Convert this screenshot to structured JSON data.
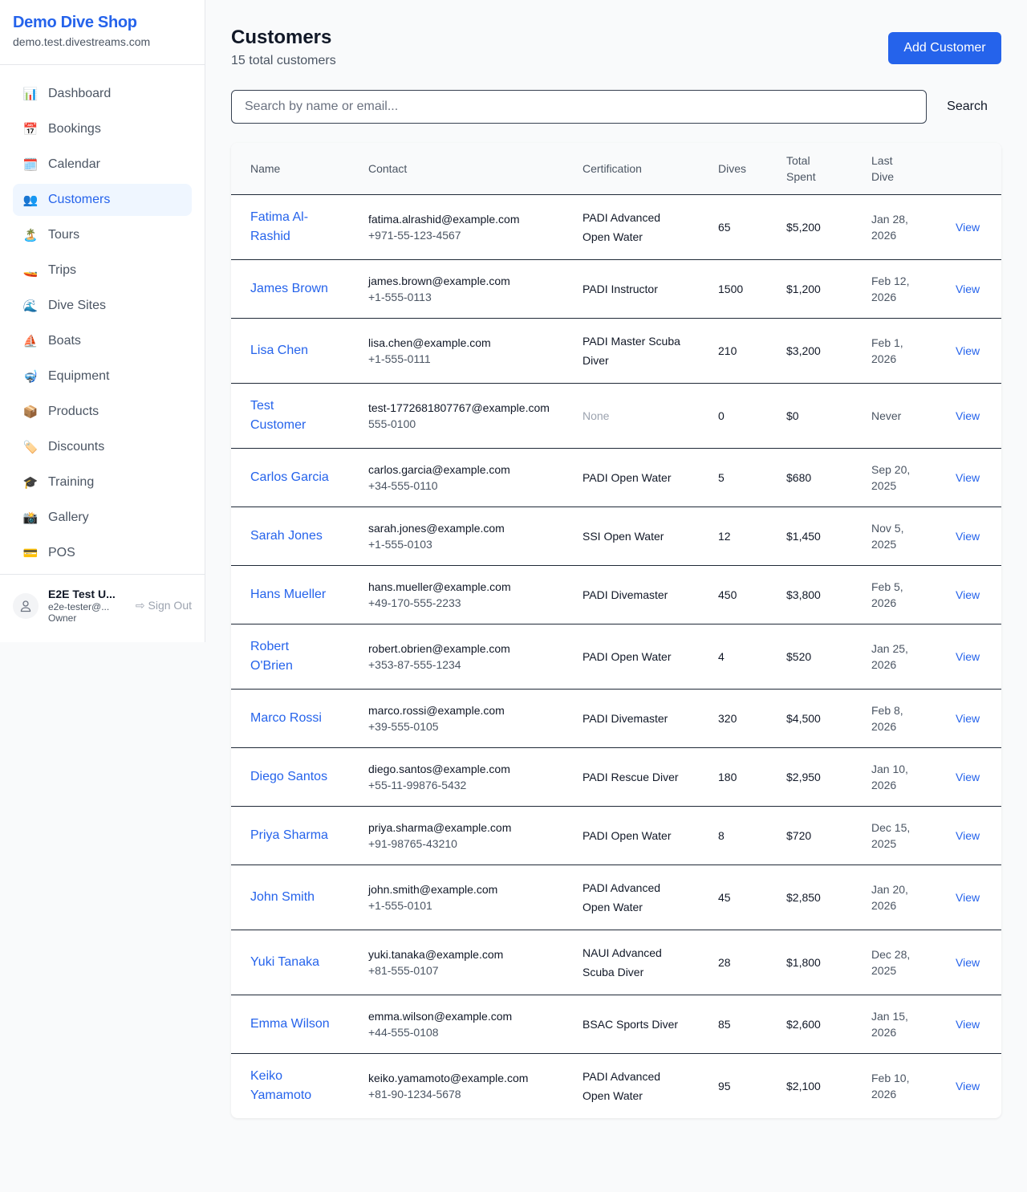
{
  "sidebar": {
    "brand": "Demo Dive Shop",
    "domain": "demo.test.divestreams.com",
    "items": [
      {
        "label": "Dashboard",
        "icon": "📊",
        "icon_name": "bar-chart-icon"
      },
      {
        "label": "Bookings",
        "icon": "📅",
        "icon_name": "calendar-date-icon"
      },
      {
        "label": "Calendar",
        "icon": "🗓️",
        "icon_name": "calendar-icon"
      },
      {
        "label": "Customers",
        "icon": "👥",
        "icon_name": "users-icon",
        "active": true
      },
      {
        "label": "Tours",
        "icon": "🏝️",
        "icon_name": "island-icon"
      },
      {
        "label": "Trips",
        "icon": "🚤",
        "icon_name": "boat-icon"
      },
      {
        "label": "Dive Sites",
        "icon": "🌊",
        "icon_name": "wave-icon"
      },
      {
        "label": "Boats",
        "icon": "⛵",
        "icon_name": "sailboat-icon"
      },
      {
        "label": "Equipment",
        "icon": "🤿",
        "icon_name": "diving-mask-icon"
      },
      {
        "label": "Products",
        "icon": "📦",
        "icon_name": "package-icon"
      },
      {
        "label": "Discounts",
        "icon": "🏷️",
        "icon_name": "tag-icon"
      },
      {
        "label": "Training",
        "icon": "🎓",
        "icon_name": "graduation-cap-icon"
      },
      {
        "label": "Gallery",
        "icon": "📸",
        "icon_name": "camera-icon"
      },
      {
        "label": "POS",
        "icon": "💳",
        "icon_name": "credit-card-icon"
      }
    ],
    "user": {
      "name": "E2E Test U...",
      "email": "e2e-tester@...",
      "role": "Owner",
      "sign_out": "Sign Out"
    }
  },
  "header": {
    "title": "Customers",
    "subtitle": "15 total customers",
    "add_button": "Add Customer"
  },
  "search": {
    "placeholder": "Search by name or email...",
    "value": "",
    "button": "Search"
  },
  "table": {
    "columns": [
      "Name",
      "Contact",
      "Certification",
      "Dives",
      "Total Spent",
      "Last Dive",
      ""
    ],
    "view_label": "View",
    "rows": [
      {
        "name": "Fatima Al-Rashid",
        "email": "fatima.alrashid@example.com",
        "phone": "+971-55-123-4567",
        "cert": "PADI Advanced Open Water",
        "dives": "65",
        "spent": "$5,200",
        "last": "Jan 28, 2026"
      },
      {
        "name": "James Brown",
        "email": "james.brown@example.com",
        "phone": "+1-555-0113",
        "cert": "PADI Instructor",
        "dives": "1500",
        "spent": "$1,200",
        "last": "Feb 12, 2026"
      },
      {
        "name": "Lisa Chen",
        "email": "lisa.chen@example.com",
        "phone": "+1-555-0111",
        "cert": "PADI Master Scuba Diver",
        "dives": "210",
        "spent": "$3,200",
        "last": "Feb 1, 2026"
      },
      {
        "name": "Test Customer",
        "email": "test-1772681807767@example.com",
        "phone": "555-0100",
        "cert": "None",
        "dives": "0",
        "spent": "$0",
        "last": "Never"
      },
      {
        "name": "Carlos Garcia",
        "email": "carlos.garcia@example.com",
        "phone": "+34-555-0110",
        "cert": "PADI Open Water",
        "dives": "5",
        "spent": "$680",
        "last": "Sep 20, 2025"
      },
      {
        "name": "Sarah Jones",
        "email": "sarah.jones@example.com",
        "phone": "+1-555-0103",
        "cert": "SSI Open Water",
        "dives": "12",
        "spent": "$1,450",
        "last": "Nov 5, 2025"
      },
      {
        "name": "Hans Mueller",
        "email": "hans.mueller@example.com",
        "phone": "+49-170-555-2233",
        "cert": "PADI Divemaster",
        "dives": "450",
        "spent": "$3,800",
        "last": "Feb 5, 2026"
      },
      {
        "name": "Robert O'Brien",
        "email": "robert.obrien@example.com",
        "phone": "+353-87-555-1234",
        "cert": "PADI Open Water",
        "dives": "4",
        "spent": "$520",
        "last": "Jan 25, 2026"
      },
      {
        "name": "Marco Rossi",
        "email": "marco.rossi@example.com",
        "phone": "+39-555-0105",
        "cert": "PADI Divemaster",
        "dives": "320",
        "spent": "$4,500",
        "last": "Feb 8, 2026"
      },
      {
        "name": "Diego Santos",
        "email": "diego.santos@example.com",
        "phone": "+55-11-99876-5432",
        "cert": "PADI Rescue Diver",
        "dives": "180",
        "spent": "$2,950",
        "last": "Jan 10, 2026"
      },
      {
        "name": "Priya Sharma",
        "email": "priya.sharma@example.com",
        "phone": "+91-98765-43210",
        "cert": "PADI Open Water",
        "dives": "8",
        "spent": "$720",
        "last": "Dec 15, 2025"
      },
      {
        "name": "John Smith",
        "email": "john.smith@example.com",
        "phone": "+1-555-0101",
        "cert": "PADI Advanced Open Water",
        "dives": "45",
        "spent": "$2,850",
        "last": "Jan 20, 2026"
      },
      {
        "name": "Yuki Tanaka",
        "email": "yuki.tanaka@example.com",
        "phone": "+81-555-0107",
        "cert": "NAUI Advanced Scuba Diver",
        "dives": "28",
        "spent": "$1,800",
        "last": "Dec 28, 2025"
      },
      {
        "name": "Emma Wilson",
        "email": "emma.wilson@example.com",
        "phone": "+44-555-0108",
        "cert": "BSAC Sports Diver",
        "dives": "85",
        "spent": "$2,600",
        "last": "Jan 15, 2026"
      },
      {
        "name": "Keiko Yamamoto",
        "email": "keiko.yamamoto@example.com",
        "phone": "+81-90-1234-5678",
        "cert": "PADI Advanced Open Water",
        "dives": "95",
        "spent": "$2,100",
        "last": "Feb 10, 2026"
      }
    ]
  }
}
